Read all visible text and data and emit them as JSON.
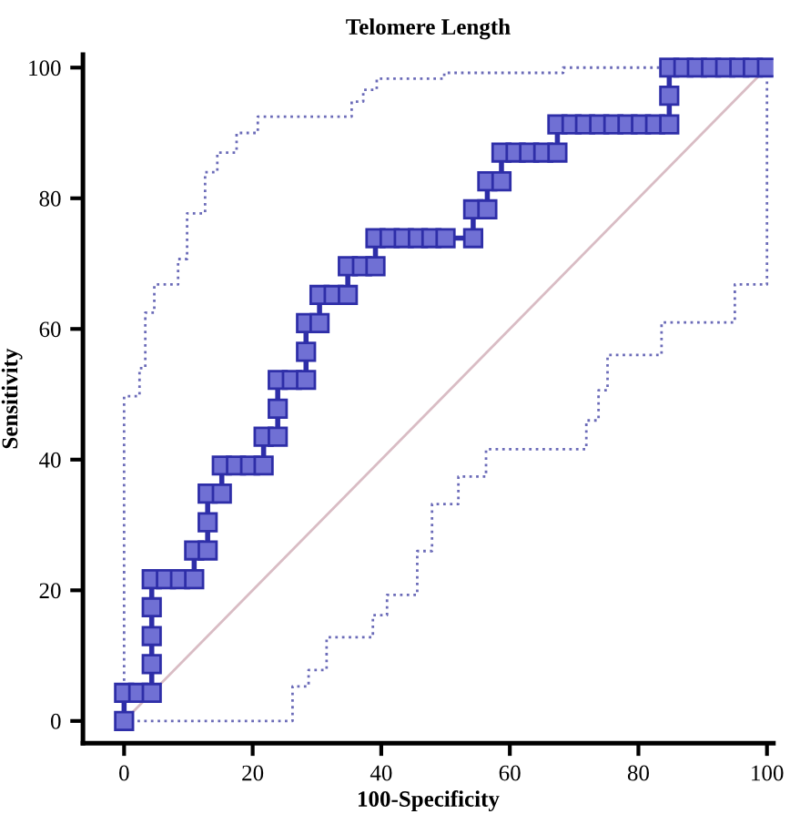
{
  "chart_data": {
    "type": "line",
    "title": "Telomere Length",
    "xlabel": "100-Specificity",
    "ylabel": "Sensitivity",
    "xlim": [
      -6.4,
      101
    ],
    "ylim": [
      -3.4,
      102
    ],
    "xticks": [
      0,
      20,
      40,
      60,
      80,
      100
    ],
    "yticks": [
      0,
      20,
      40,
      60,
      80,
      100
    ],
    "grid": false,
    "legend": false,
    "series": [
      {
        "type": "line",
        "color": "#d9bcc4",
        "line_style": "solid",
        "marker": "none",
        "x": [
          0,
          100
        ],
        "values": [
          0,
          100
        ]
      },
      {
        "type": "step",
        "color": "#6b6bb8",
        "line_style": "dotted",
        "marker": "none",
        "x": [
          0,
          0,
          2.4,
          3.3,
          4.7,
          8.4,
          9.8,
          12.6,
          14.5,
          17.5,
          20.8,
          35.4,
          37.2,
          39.3,
          49.8,
          68.3,
          100
        ],
        "values": [
          0,
          49.7,
          54,
          62.5,
          66.8,
          70.7,
          77.7,
          84,
          87,
          90,
          92.5,
          94.8,
          96.6,
          98.3,
          99.2,
          100,
          100
        ]
      },
      {
        "type": "step",
        "color": "#6b6bb8",
        "line_style": "dotted",
        "marker": "none",
        "x": [
          0,
          17.3,
          26.2,
          28.7,
          31.5,
          38.7,
          40.9,
          45.6,
          47.9,
          52,
          56.3,
          71.9,
          73.8,
          75.2,
          83.6,
          95,
          100,
          100
        ],
        "values": [
          0,
          0,
          5.3,
          7.8,
          12.8,
          16.2,
          19.3,
          26,
          33.2,
          37.4,
          41.6,
          46,
          50.6,
          56,
          61,
          66.8,
          80.4,
          100
        ]
      },
      {
        "color": "#2e2ea8",
        "line_style": "solid",
        "marker": "square",
        "x": [
          0,
          0,
          2.2,
          4.3,
          4.3,
          4.3,
          4.3,
          4.3,
          6.5,
          8.7,
          10.9,
          10.9,
          13,
          13,
          13,
          15.2,
          15.2,
          17.4,
          19.6,
          21.7,
          21.7,
          23.9,
          23.9,
          23.9,
          26.1,
          28.3,
          28.3,
          28.3,
          30.4,
          30.4,
          32.6,
          34.8,
          34.8,
          37,
          39.1,
          39.1,
          41.3,
          43.5,
          45.7,
          47.8,
          50,
          54.3,
          54.3,
          56.5,
          56.5,
          58.7,
          58.7,
          60.9,
          63,
          65.2,
          67.4,
          67.4,
          69.6,
          71.7,
          73.9,
          76.1,
          78.3,
          80.4,
          82.6,
          84.8,
          84.8,
          84.8,
          87,
          89.1,
          91.3,
          93.5,
          95.7,
          97.8,
          100
        ],
        "values": [
          0,
          4.3,
          4.3,
          4.3,
          8.7,
          13,
          17.4,
          21.7,
          21.7,
          21.7,
          21.7,
          26.1,
          26.1,
          30.4,
          34.8,
          34.8,
          39.1,
          39.1,
          39.1,
          39.1,
          43.5,
          43.5,
          47.8,
          52.2,
          52.2,
          52.2,
          56.5,
          60.9,
          60.9,
          65.2,
          65.2,
          65.2,
          69.6,
          69.6,
          69.6,
          73.9,
          73.9,
          73.9,
          73.9,
          73.9,
          73.9,
          73.9,
          78.3,
          78.3,
          82.6,
          82.6,
          87,
          87,
          87,
          87,
          87,
          91.3,
          91.3,
          91.3,
          91.3,
          91.3,
          91.3,
          91.3,
          91.3,
          91.3,
          95.7,
          100,
          100,
          100,
          100,
          100,
          100,
          100,
          100
        ]
      }
    ]
  }
}
